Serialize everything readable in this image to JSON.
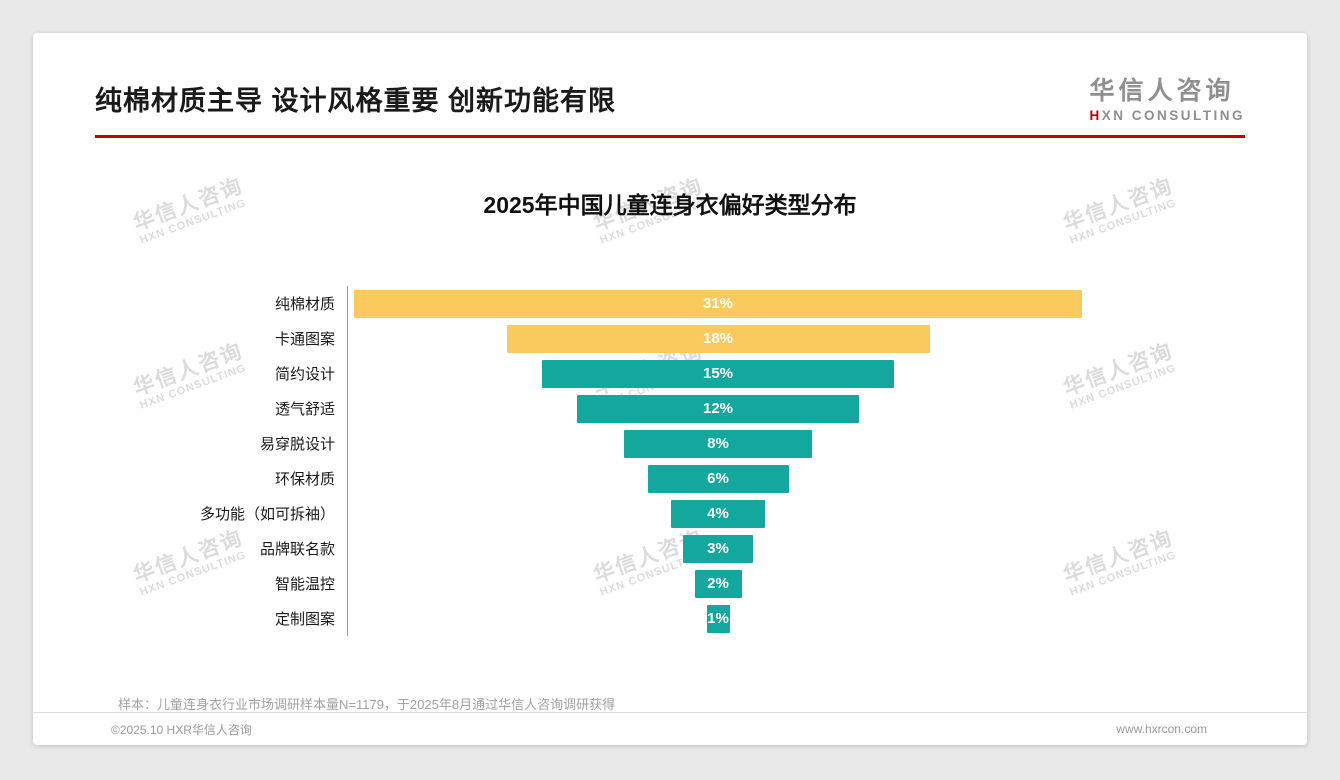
{
  "page": {
    "title": "纯棉材质主导 设计风格重要 创新功能有限",
    "logo": {
      "cn": "华信人咨询",
      "en_first": "H",
      "en_rest": "XN CONSULTING"
    }
  },
  "watermark": {
    "cn": "华信人咨询",
    "en": "HXN CONSULTING"
  },
  "chart_data": {
    "type": "bar",
    "variant": "centered-funnel-horizontal",
    "title": "2025年中国儿童连身衣偏好类型分布",
    "categories": [
      "纯棉材质",
      "卡通图案",
      "简约设计",
      "透气舒适",
      "易穿脱设计",
      "环保材质",
      "多功能（如可拆袖）",
      "品牌联名款",
      "智能温控",
      "定制图案"
    ],
    "values": [
      31,
      18,
      15,
      12,
      8,
      6,
      4,
      3,
      2,
      1
    ],
    "labels": [
      "31%",
      "18%",
      "15%",
      "12%",
      "8%",
      "6%",
      "4%",
      "3%",
      "2%",
      "1%"
    ],
    "max_value": 31,
    "highlight_color": "#fbca5f",
    "default_color": "#13a79d",
    "highlight_count": 2,
    "value_label_color": "#ffffff",
    "xlabel": "",
    "ylabel": ""
  },
  "footer": {
    "sample_note": "样本：儿童连身衣行业市场调研样本量N=1179，于2025年8月通过华信人咨询调研获得",
    "copyright": "©2025.10 HXR华信人咨询",
    "website": "www.hxrcon.com"
  }
}
